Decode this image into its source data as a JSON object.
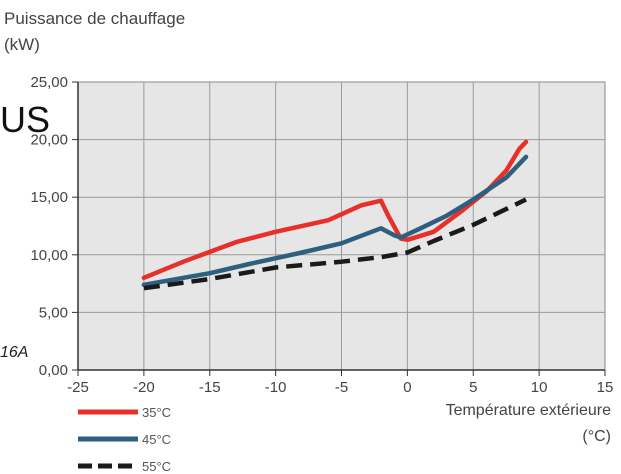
{
  "overlay_text": {
    "left_fragment": "US",
    "model_fragment": "16A"
  },
  "chart_data": {
    "type": "line",
    "title": "",
    "ylabel_line1": "Puissance de chauffage",
    "ylabel_line2": "(kW)",
    "xlabel_line1": "Température extérieure",
    "xlabel_line2": "(°C)",
    "xlim": [
      -25,
      15
    ],
    "ylim": [
      0,
      25
    ],
    "x_ticks": [
      -25,
      -20,
      -15,
      -10,
      -5,
      0,
      5,
      10,
      15
    ],
    "x_tick_labels": [
      "-25",
      "-20",
      "-15",
      "-10",
      "-5",
      "0",
      "5",
      "10",
      "15"
    ],
    "y_ticks": [
      0,
      5,
      10,
      15,
      20,
      25
    ],
    "y_tick_labels": [
      "0,00",
      "5,00",
      "10,00",
      "15,00",
      "20,00",
      "25,00"
    ],
    "grid": true,
    "legend_position": "bottom-left",
    "plot_background": "#e6e6e6",
    "series": [
      {
        "name": "35°C",
        "color": "#e8302a",
        "dash": "solid",
        "x": [
          -20,
          -17,
          -13,
          -10,
          -6,
          -3.5,
          -2,
          -1.5,
          -0.5,
          0,
          2,
          4,
          6,
          7.5,
          8.5,
          9
        ],
        "y": [
          8.0,
          9.4,
          11.1,
          12.0,
          13.0,
          14.3,
          14.7,
          13.5,
          11.4,
          11.3,
          12.0,
          13.7,
          15.5,
          17.3,
          19.2,
          19.8
        ]
      },
      {
        "name": "45°C",
        "color": "#2e5f7f",
        "dash": "solid",
        "x": [
          -20,
          -15,
          -12,
          -8,
          -5,
          -2,
          -1,
          -0.5,
          1,
          3,
          5,
          7.5,
          9
        ],
        "y": [
          7.4,
          8.4,
          9.2,
          10.2,
          11.0,
          12.3,
          11.7,
          11.5,
          12.3,
          13.4,
          14.8,
          16.7,
          18.5
        ]
      },
      {
        "name": "55°C",
        "color": "#1a1a1a",
        "dash": "dashed",
        "x": [
          -20,
          -15,
          -10,
          -5,
          -2,
          0,
          2,
          5,
          7,
          9
        ],
        "y": [
          7.1,
          7.9,
          8.9,
          9.4,
          9.8,
          10.2,
          11.2,
          12.6,
          13.7,
          14.8
        ]
      }
    ]
  }
}
